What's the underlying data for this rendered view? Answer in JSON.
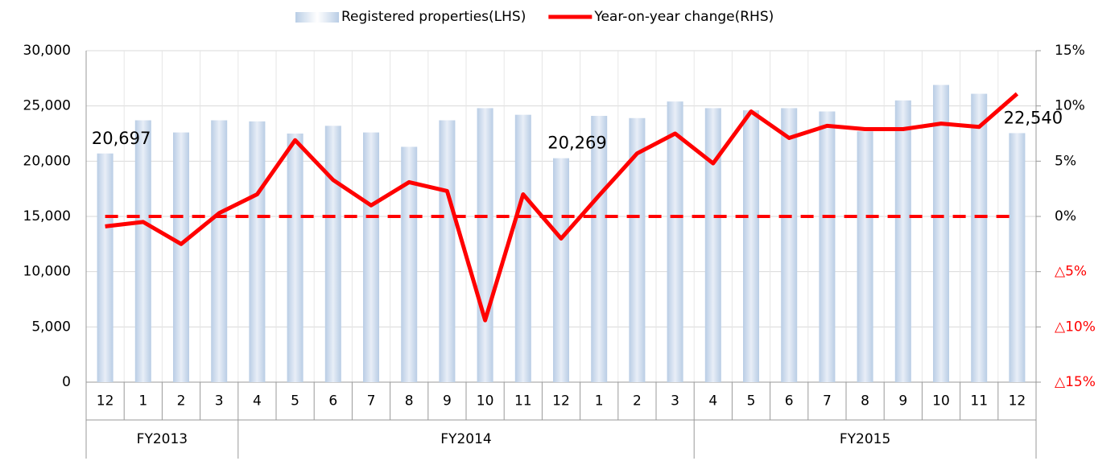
{
  "chart_data": {
    "type": "bar_line",
    "categories": [
      "12",
      "1",
      "2",
      "3",
      "4",
      "5",
      "6",
      "7",
      "8",
      "9",
      "10",
      "11",
      "12",
      "1",
      "2",
      "3",
      "4",
      "5",
      "6",
      "7",
      "8",
      "9",
      "10",
      "11",
      "12"
    ],
    "groups": [
      {
        "name": "FY2013",
        "categories": 4
      },
      {
        "name": "FY2014",
        "categories": 12
      },
      {
        "name": "FY2015",
        "categories": 9
      }
    ],
    "series": [
      {
        "name": "Registered properties(LHS)",
        "type": "bar",
        "color": "#b9cde5",
        "values": [
          20697,
          23700,
          22600,
          23700,
          23600,
          22500,
          23200,
          22600,
          21300,
          23700,
          24800,
          24200,
          20269,
          24100,
          23900,
          25400,
          24800,
          24600,
          24800,
          24500,
          22700,
          25500,
          26900,
          26100,
          22540
        ],
        "value_labels": [
          "20,697",
          null,
          null,
          null,
          null,
          null,
          null,
          null,
          null,
          null,
          null,
          null,
          "20,269",
          null,
          null,
          null,
          null,
          null,
          null,
          null,
          null,
          null,
          null,
          null,
          "22,540"
        ]
      },
      {
        "name": "Year-on-year change(RHS)",
        "type": "line",
        "axis": "y2",
        "color": "#ff0000",
        "values": [
          -0.9,
          -0.5,
          -2.5,
          0.3,
          2.0,
          6.9,
          3.3,
          1.0,
          3.1,
          2.3,
          -9.4,
          2.0,
          -2.0,
          1.9,
          5.7,
          7.5,
          4.8,
          9.5,
          7.1,
          8.2,
          7.9,
          7.9,
          8.4,
          8.1,
          11.1
        ]
      }
    ],
    "ylim": [
      0,
      30000
    ],
    "yticks": [
      0,
      {
        "value": 5000,
        "label": "5,000"
      },
      {
        "value": 10000,
        "label": "10,000"
      },
      {
        "value": 15000,
        "label": "15,000"
      },
      {
        "value": 20000,
        "label": "20,000"
      },
      {
        "value": 25000,
        "label": "25,000"
      },
      {
        "value": 30000,
        "label": "30,000"
      }
    ],
    "y2lim": [
      -15,
      15
    ],
    "y2ticks": [
      {
        "value": -15,
        "label": "△15%"
      },
      {
        "value": -10,
        "label": "△10%"
      },
      {
        "value": -5,
        "label": "△5%"
      },
      {
        "value": 0,
        "label": "0%"
      },
      {
        "value": 5,
        "label": "5%"
      },
      {
        "value": 10,
        "label": "10%"
      },
      {
        "value": 15,
        "label": "15%"
      }
    ],
    "y2_reference_line": 0,
    "negative_tick_color": "#ff0000",
    "grid": true,
    "legend": "top"
  }
}
